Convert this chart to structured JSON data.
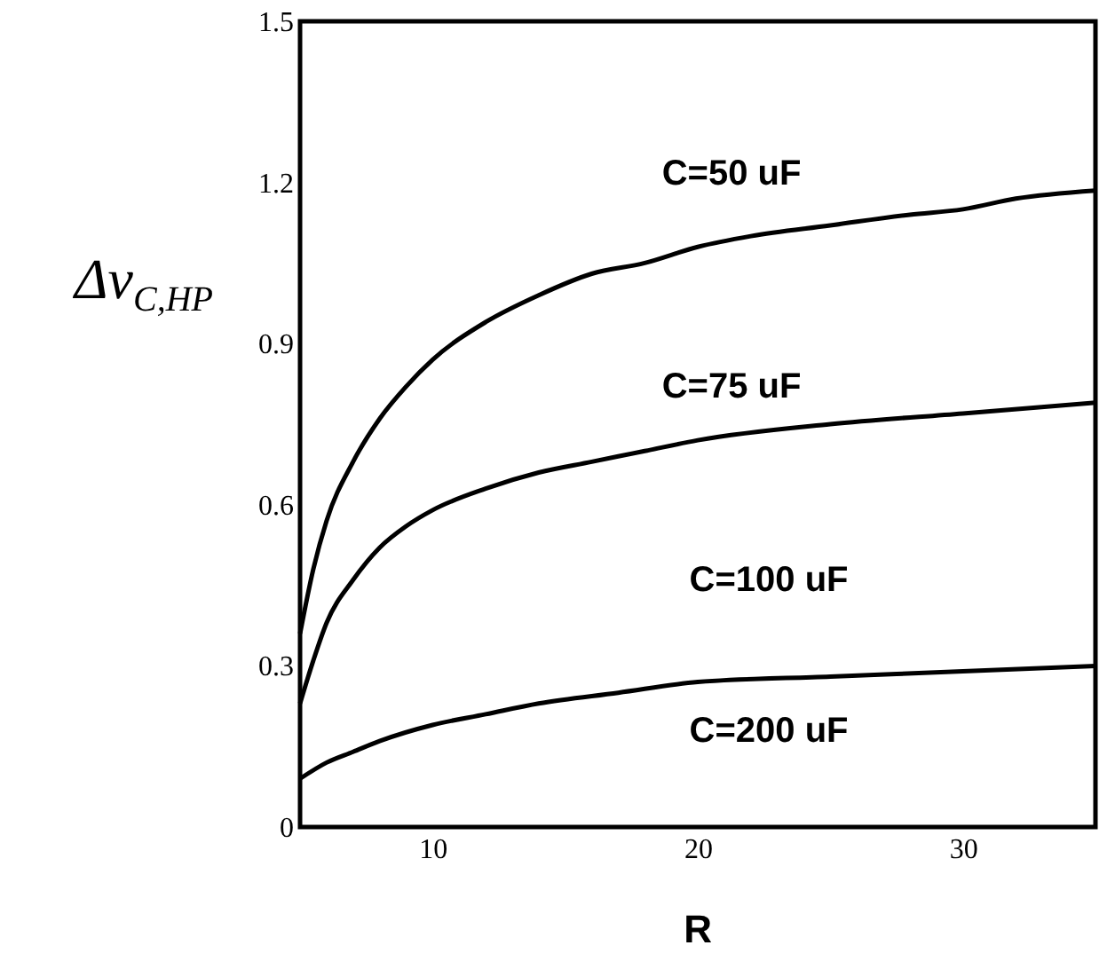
{
  "chart_data": {
    "type": "line",
    "xlabel": "R",
    "ylabel": "Δv$_{C,HP}$",
    "xlim": [
      5,
      35
    ],
    "xticks": [
      10,
      20,
      30
    ],
    "ylim": [
      0,
      1.5
    ],
    "yticks": [
      {
        "value": 0,
        "label": "0"
      },
      0.3,
      0.6,
      0.9,
      1.2,
      1.5
    ],
    "grid": false,
    "marker": "none",
    "line_style": "solid",
    "series": [
      {
        "color": "#000000",
        "x": [
          5,
          5.5,
          6,
          7,
          8,
          9,
          10,
          12,
          14,
          16,
          18,
          20,
          22,
          25,
          28,
          30,
          32,
          35
        ],
        "values": [
          0.36,
          0.48,
          0.57,
          0.68,
          0.76,
          0.82,
          0.87,
          0.94,
          0.99,
          1.03,
          1.05,
          1.08,
          1.1,
          1.12,
          1.14,
          1.15,
          1.17,
          1.185
        ]
      },
      {
        "color": "#000000",
        "x": [
          5,
          5.5,
          6,
          7,
          8,
          9,
          10,
          12,
          14,
          16,
          18,
          20,
          25,
          30,
          35
        ],
        "values": [
          0.23,
          0.31,
          0.38,
          0.46,
          0.52,
          0.56,
          0.59,
          0.63,
          0.66,
          0.68,
          0.7,
          0.72,
          0.75,
          0.77,
          0.79
        ]
      },
      {
        "color": "#000000",
        "x": [
          5,
          6,
          7,
          8,
          10,
          12,
          14,
          17,
          20,
          25,
          30,
          35
        ],
        "values": [
          0.09,
          0.12,
          0.14,
          0.16,
          0.19,
          0.21,
          0.23,
          0.25,
          0.27,
          0.28,
          0.29,
          0.3
        ]
      }
    ],
    "annotations": [
      "C=50 uF",
      "C=75 uF",
      "C=100 uF",
      "C=200 uF"
    ]
  }
}
